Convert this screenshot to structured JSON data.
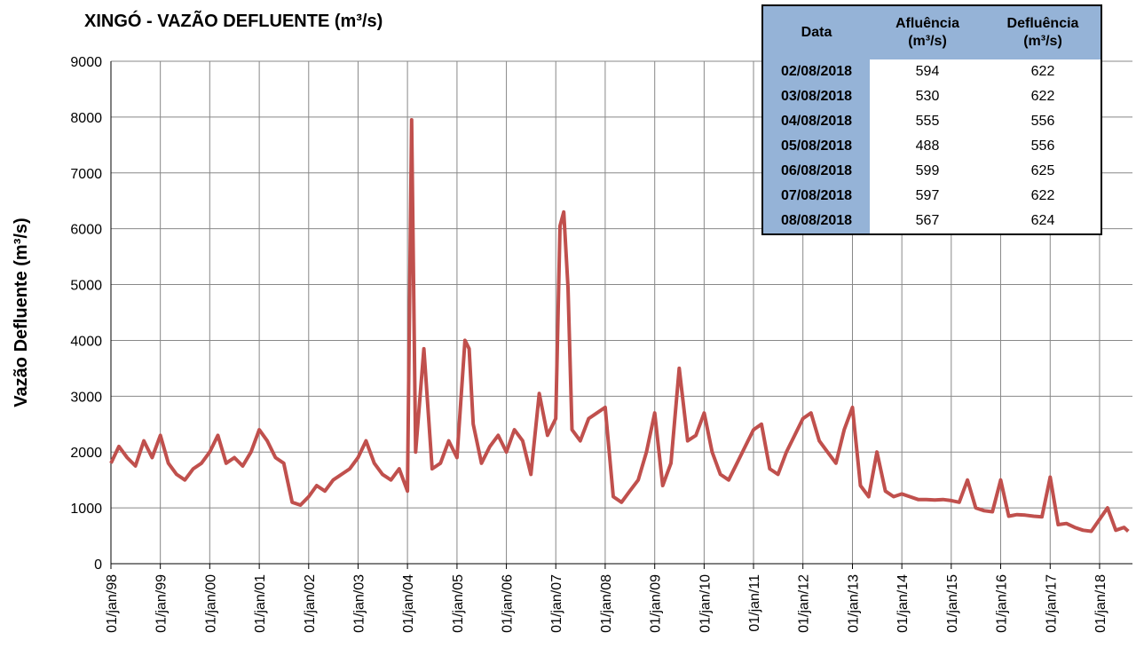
{
  "chart_data": {
    "type": "line",
    "title": "XINGÓ - VAZÃO DEFLUENTE (m³/s)",
    "y_label": "Vazão Defluente  (m³/s)",
    "x": [
      "1998-01-01",
      "1998-03-01",
      "1998-05-01",
      "1998-07-01",
      "1998-09-01",
      "1998-11-01",
      "1999-01-01",
      "1999-03-01",
      "1999-05-01",
      "1999-07-01",
      "1999-09-01",
      "1999-11-01",
      "2000-01-01",
      "2000-03-01",
      "2000-05-01",
      "2000-07-01",
      "2000-09-01",
      "2000-11-01",
      "2001-01-01",
      "2001-03-01",
      "2001-05-01",
      "2001-07-01",
      "2001-09-01",
      "2001-11-01",
      "2002-01-01",
      "2002-03-01",
      "2002-05-01",
      "2002-07-01",
      "2002-09-01",
      "2002-11-01",
      "2003-01-01",
      "2003-03-01",
      "2003-05-01",
      "2003-07-01",
      "2003-09-01",
      "2003-11-01",
      "2004-01-01",
      "2004-02-01",
      "2004-03-01",
      "2004-05-01",
      "2004-07-01",
      "2004-09-01",
      "2004-11-01",
      "2005-01-01",
      "2005-03-01",
      "2005-04-01",
      "2005-05-01",
      "2005-07-01",
      "2005-09-01",
      "2005-11-01",
      "2006-01-01",
      "2006-03-01",
      "2006-05-01",
      "2006-07-01",
      "2006-09-01",
      "2006-11-01",
      "2007-01-01",
      "2007-02-01",
      "2007-03-01",
      "2007-04-01",
      "2007-05-01",
      "2007-07-01",
      "2007-09-01",
      "2007-11-01",
      "2008-01-01",
      "2008-03-01",
      "2008-05-01",
      "2008-07-01",
      "2008-09-01",
      "2008-11-01",
      "2009-01-01",
      "2009-03-01",
      "2009-05-01",
      "2009-07-01",
      "2009-09-01",
      "2009-11-01",
      "2010-01-01",
      "2010-03-01",
      "2010-05-01",
      "2010-07-01",
      "2010-09-01",
      "2010-11-01",
      "2011-01-01",
      "2011-03-01",
      "2011-05-01",
      "2011-07-01",
      "2011-09-01",
      "2011-11-01",
      "2012-01-01",
      "2012-03-01",
      "2012-05-01",
      "2012-07-01",
      "2012-09-01",
      "2012-11-01",
      "2013-01-01",
      "2013-03-01",
      "2013-05-01",
      "2013-07-01",
      "2013-09-01",
      "2013-11-01",
      "2014-01-01",
      "2014-03-01",
      "2014-05-01",
      "2014-07-01",
      "2014-09-01",
      "2014-11-01",
      "2015-01-01",
      "2015-03-01",
      "2015-05-01",
      "2015-07-01",
      "2015-09-01",
      "2015-11-01",
      "2016-01-01",
      "2016-03-01",
      "2016-05-01",
      "2016-07-01",
      "2016-09-01",
      "2016-11-01",
      "2017-01-01",
      "2017-03-01",
      "2017-05-01",
      "2017-07-01",
      "2017-09-01",
      "2017-11-01",
      "2018-03-01",
      "2018-05-01",
      "2018-07-01",
      "2018-08-01"
    ],
    "values": [
      1800,
      2100,
      1900,
      1750,
      2200,
      1900,
      2300,
      1800,
      1600,
      1500,
      1700,
      1800,
      2000,
      2300,
      1800,
      1900,
      1750,
      2000,
      2400,
      2200,
      1900,
      1800,
      1100,
      1050,
      1200,
      1400,
      1300,
      1500,
      1600,
      1700,
      1900,
      2200,
      1800,
      1600,
      1500,
      1700,
      1300,
      7950,
      2000,
      3850,
      1700,
      1800,
      2200,
      1900,
      4000,
      3850,
      2500,
      1800,
      2100,
      2300,
      2000,
      2400,
      2200,
      1600,
      3050,
      2300,
      2600,
      6050,
      6300,
      4950,
      2400,
      2200,
      2600,
      2700,
      2800,
      1200,
      1100,
      1300,
      1500,
      2000,
      2700,
      1400,
      1800,
      3500,
      2200,
      2300,
      2700,
      2000,
      1600,
      1500,
      1800,
      2100,
      2400,
      2500,
      1700,
      1600,
      2000,
      2300,
      2600,
      2700,
      2200,
      2000,
      1800,
      2400,
      2800,
      1400,
      1200,
      2000,
      1300,
      1200,
      1250,
      1200,
      1150,
      1150,
      1140,
      1150,
      1130,
      1100,
      1500,
      1000,
      950,
      930,
      1500,
      850,
      880,
      870,
      850,
      840,
      1550,
      700,
      720,
      650,
      600,
      580,
      1000,
      600,
      650,
      580
    ],
    "color": "#c0504d",
    "xlim": [
      "1998-01-01",
      "2018-09-01"
    ],
    "xticks": [
      {
        "value": "1998-01-01",
        "label": "01/jan/98"
      },
      {
        "value": "1999-01-01",
        "label": "01/jan/99"
      },
      {
        "value": "2000-01-01",
        "label": "01/jan/00"
      },
      {
        "value": "2001-01-01",
        "label": "01/jan/01"
      },
      {
        "value": "2002-01-01",
        "label": "01/jan/02"
      },
      {
        "value": "2003-01-01",
        "label": "01/jan/03"
      },
      {
        "value": "2004-01-01",
        "label": "01/jan/04"
      },
      {
        "value": "2005-01-01",
        "label": "01/jan/05"
      },
      {
        "value": "2006-01-01",
        "label": "01/jan/06"
      },
      {
        "value": "2007-01-01",
        "label": "01/jan/07"
      },
      {
        "value": "2008-01-01",
        "label": "01/jan/08"
      },
      {
        "value": "2009-01-01",
        "label": "01/jan/09"
      },
      {
        "value": "2010-01-01",
        "label": "01/jan/10"
      },
      {
        "value": "2011-01-01",
        "label": "01/jan/11"
      },
      {
        "value": "2012-01-01",
        "label": "01/jan/12"
      },
      {
        "value": "2013-01-01",
        "label": "01/jan/13"
      },
      {
        "value": "2014-01-01",
        "label": "01/jan/14"
      },
      {
        "value": "2015-01-01",
        "label": "01/jan/15"
      },
      {
        "value": "2016-01-01",
        "label": "01/jan/16"
      },
      {
        "value": "2017-01-01",
        "label": "01/jan/17"
      },
      {
        "value": "2018-01-01",
        "label": "01/jan/18"
      }
    ],
    "ylim": [
      0,
      9000
    ],
    "yticks": [
      0,
      1000,
      2000,
      3000,
      4000,
      5000,
      6000,
      7000,
      8000,
      9000
    ],
    "grid": true
  },
  "table": {
    "header": [
      "Data",
      "Afluência\n(m³/s)",
      "Defluência\n(m³/s)"
    ],
    "rows": [
      [
        "02/08/2018",
        594,
        622
      ],
      [
        "03/08/2018",
        530,
        622
      ],
      [
        "04/08/2018",
        555,
        556
      ],
      [
        "05/08/2018",
        488,
        556
      ],
      [
        "06/08/2018",
        599,
        625
      ],
      [
        "07/08/2018",
        597,
        622
      ],
      [
        "08/08/2018",
        567,
        624
      ]
    ]
  }
}
